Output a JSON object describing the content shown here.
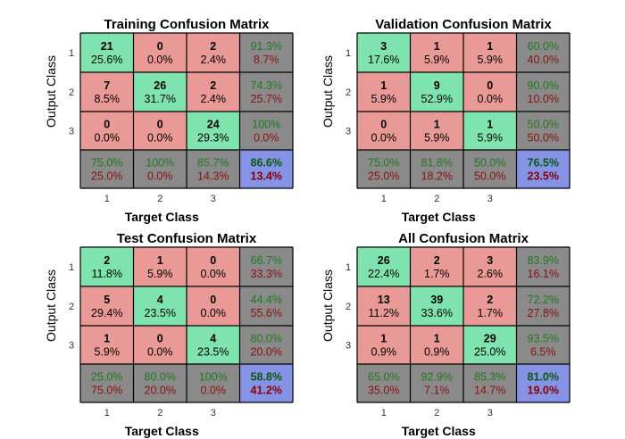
{
  "chart_data": [
    {
      "type": "heatmap",
      "title": "Training Confusion Matrix",
      "xlabel": "Target Class",
      "ylabel": "Output Class",
      "class_labels": [
        "1",
        "2",
        "3"
      ],
      "cells": [
        [
          {
            "count": "21",
            "pct": "25.6%"
          },
          {
            "count": "0",
            "pct": "0.0%"
          },
          {
            "count": "2",
            "pct": "2.4%"
          }
        ],
        [
          {
            "count": "7",
            "pct": "8.5%"
          },
          {
            "count": "26",
            "pct": "31.7%"
          },
          {
            "count": "2",
            "pct": "2.4%"
          }
        ],
        [
          {
            "count": "0",
            "pct": "0.0%"
          },
          {
            "count": "0",
            "pct": "0.0%"
          },
          {
            "count": "24",
            "pct": "29.3%"
          }
        ]
      ],
      "row_summary": [
        [
          "91.3%",
          "8.7%"
        ],
        [
          "74.3%",
          "25.7%"
        ],
        [
          "100%",
          "0.0%"
        ]
      ],
      "col_summary": [
        [
          "75.0%",
          "25.0%"
        ],
        [
          "100%",
          "0.0%"
        ],
        [
          "85.7%",
          "14.3%"
        ]
      ],
      "overall": [
        "86.6%",
        "13.4%"
      ]
    },
    {
      "type": "heatmap",
      "title": "Validation Confusion Matrix",
      "xlabel": "Target Class",
      "ylabel": "Output Class",
      "class_labels": [
        "1",
        "2",
        "3"
      ],
      "cells": [
        [
          {
            "count": "3",
            "pct": "17.6%"
          },
          {
            "count": "1",
            "pct": "5.9%"
          },
          {
            "count": "1",
            "pct": "5.9%"
          }
        ],
        [
          {
            "count": "1",
            "pct": "5.9%"
          },
          {
            "count": "9",
            "pct": "52.9%"
          },
          {
            "count": "0",
            "pct": "0.0%"
          }
        ],
        [
          {
            "count": "0",
            "pct": "0.0%"
          },
          {
            "count": "1",
            "pct": "5.9%"
          },
          {
            "count": "1",
            "pct": "5.9%"
          }
        ]
      ],
      "row_summary": [
        [
          "60.0%",
          "40.0%"
        ],
        [
          "90.0%",
          "10.0%"
        ],
        [
          "50.0%",
          "50.0%"
        ]
      ],
      "col_summary": [
        [
          "75.0%",
          "25.0%"
        ],
        [
          "81.8%",
          "18.2%"
        ],
        [
          "50.0%",
          "50.0%"
        ]
      ],
      "overall": [
        "76.5%",
        "23.5%"
      ]
    },
    {
      "type": "heatmap",
      "title": "Test Confusion Matrix",
      "xlabel": "Target Class",
      "ylabel": "Output Class",
      "class_labels": [
        "1",
        "2",
        "3"
      ],
      "cells": [
        [
          {
            "count": "2",
            "pct": "11.8%"
          },
          {
            "count": "1",
            "pct": "5.9%"
          },
          {
            "count": "0",
            "pct": "0.0%"
          }
        ],
        [
          {
            "count": "5",
            "pct": "29.4%"
          },
          {
            "count": "4",
            "pct": "23.5%"
          },
          {
            "count": "0",
            "pct": "0.0%"
          }
        ],
        [
          {
            "count": "1",
            "pct": "5.9%"
          },
          {
            "count": "0",
            "pct": "0.0%"
          },
          {
            "count": "4",
            "pct": "23.5%"
          }
        ]
      ],
      "row_summary": [
        [
          "66.7%",
          "33.3%"
        ],
        [
          "44.4%",
          "55.6%"
        ],
        [
          "80.0%",
          "20.0%"
        ]
      ],
      "col_summary": [
        [
          "25.0%",
          "75.0%"
        ],
        [
          "80.0%",
          "20.0%"
        ],
        [
          "100%",
          "0.0%"
        ]
      ],
      "overall": [
        "58.8%",
        "41.2%"
      ]
    },
    {
      "type": "heatmap",
      "title": "All Confusion Matrix",
      "xlabel": "Target Class",
      "ylabel": "Output Class",
      "class_labels": [
        "1",
        "2",
        "3"
      ],
      "cells": [
        [
          {
            "count": "26",
            "pct": "22.4%"
          },
          {
            "count": "2",
            "pct": "1.7%"
          },
          {
            "count": "3",
            "pct": "2.6%"
          }
        ],
        [
          {
            "count": "13",
            "pct": "11.2%"
          },
          {
            "count": "39",
            "pct": "33.6%"
          },
          {
            "count": "2",
            "pct": "1.7%"
          }
        ],
        [
          {
            "count": "1",
            "pct": "0.9%"
          },
          {
            "count": "1",
            "pct": "0.9%"
          },
          {
            "count": "29",
            "pct": "25.0%"
          }
        ]
      ],
      "row_summary": [
        [
          "83.9%",
          "16.1%"
        ],
        [
          "72.2%",
          "27.8%"
        ],
        [
          "93.5%",
          "6.5%"
        ]
      ],
      "col_summary": [
        [
          "65.0%",
          "35.0%"
        ],
        [
          "92.9%",
          "7.1%"
        ],
        [
          "85.3%",
          "14.7%"
        ]
      ],
      "overall": [
        "81.0%",
        "19.0%"
      ]
    }
  ],
  "colors": {
    "correct": "#7fe3ae",
    "incorrect": "#e99a97",
    "summary": "#8a8a8a",
    "overall": "#8593e6",
    "good_text": "#1e7a1e",
    "bad_text": "#8a1010",
    "overall_good_text": "#0a5a0a",
    "overall_bad_text": "#8a0000",
    "grid": "#000000"
  }
}
